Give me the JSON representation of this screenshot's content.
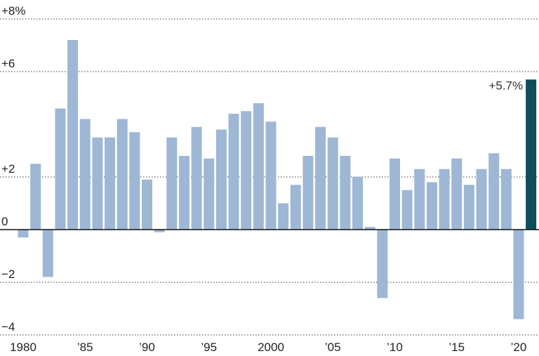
{
  "chart_data": {
    "type": "bar",
    "title": "",
    "xlabel": "",
    "ylabel": "",
    "ylim": [
      -4,
      8
    ],
    "y_ticks": [
      {
        "value": 8,
        "label": "+8%"
      },
      {
        "value": 6,
        "label": "+6"
      },
      {
        "value": 2,
        "label": "+2"
      },
      {
        "value": 0,
        "label": "0"
      },
      {
        "value": -2,
        "label": "−2"
      },
      {
        "value": -4,
        "label": "−4"
      }
    ],
    "x_ticks": [
      {
        "year": 1980,
        "label": "1980"
      },
      {
        "year": 1985,
        "label": "’85"
      },
      {
        "year": 1990,
        "label": "’90"
      },
      {
        "year": 1995,
        "label": "’95"
      },
      {
        "year": 2000,
        "label": "2000"
      },
      {
        "year": 2005,
        "label": "’05"
      },
      {
        "year": 2010,
        "label": "’10"
      },
      {
        "year": 2015,
        "label": "’15"
      },
      {
        "year": 2020,
        "label": "’20"
      }
    ],
    "grid": true,
    "highlight_year": 2021,
    "highlight_label": "+5.7%",
    "colors": {
      "bar": "#9db7d5",
      "highlight": "#0f4c5c",
      "axis": "#111111",
      "grid": "#333333"
    },
    "series": [
      {
        "values": [
          {
            "x": 1980,
            "y": -0.3
          },
          {
            "x": 1981,
            "y": 2.5
          },
          {
            "x": 1982,
            "y": -1.8
          },
          {
            "x": 1983,
            "y": 4.6
          },
          {
            "x": 1984,
            "y": 7.2
          },
          {
            "x": 1985,
            "y": 4.2
          },
          {
            "x": 1986,
            "y": 3.5
          },
          {
            "x": 1987,
            "y": 3.5
          },
          {
            "x": 1988,
            "y": 4.2
          },
          {
            "x": 1989,
            "y": 3.7
          },
          {
            "x": 1990,
            "y": 1.9
          },
          {
            "x": 1991,
            "y": -0.1
          },
          {
            "x": 1992,
            "y": 3.5
          },
          {
            "x": 1993,
            "y": 2.8
          },
          {
            "x": 1994,
            "y": 3.9
          },
          {
            "x": 1995,
            "y": 2.7
          },
          {
            "x": 1996,
            "y": 3.8
          },
          {
            "x": 1997,
            "y": 4.4
          },
          {
            "x": 1998,
            "y": 4.5
          },
          {
            "x": 1999,
            "y": 4.8
          },
          {
            "x": 2000,
            "y": 4.1
          },
          {
            "x": 2001,
            "y": 1.0
          },
          {
            "x": 2002,
            "y": 1.7
          },
          {
            "x": 2003,
            "y": 2.8
          },
          {
            "x": 2004,
            "y": 3.9
          },
          {
            "x": 2005,
            "y": 3.5
          },
          {
            "x": 2006,
            "y": 2.8
          },
          {
            "x": 2007,
            "y": 2.0
          },
          {
            "x": 2008,
            "y": 0.1
          },
          {
            "x": 2009,
            "y": -2.6
          },
          {
            "x": 2010,
            "y": 2.7
          },
          {
            "x": 2011,
            "y": 1.5
          },
          {
            "x": 2012,
            "y": 2.3
          },
          {
            "x": 2013,
            "y": 1.8
          },
          {
            "x": 2014,
            "y": 2.3
          },
          {
            "x": 2015,
            "y": 2.7
          },
          {
            "x": 2016,
            "y": 1.7
          },
          {
            "x": 2017,
            "y": 2.3
          },
          {
            "x": 2018,
            "y": 2.9
          },
          {
            "x": 2019,
            "y": 2.3
          },
          {
            "x": 2020,
            "y": -3.4
          },
          {
            "x": 2021,
            "y": 5.7
          }
        ]
      }
    ]
  }
}
